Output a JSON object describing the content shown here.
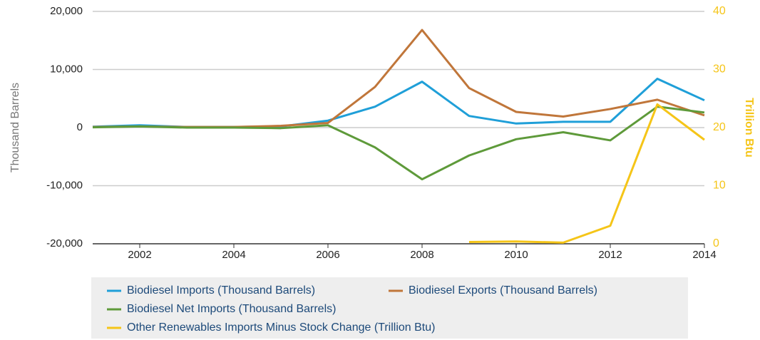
{
  "chart_data": {
    "type": "line",
    "y_label": "Thousand Barrels",
    "y2_label": "Trillion Btu",
    "x": [
      2001,
      2002,
      2003,
      2004,
      2005,
      2006,
      2007,
      2008,
      2009,
      2010,
      2011,
      2012,
      2013,
      2014
    ],
    "xlim": [
      2001,
      2014
    ],
    "xticks": [
      2002,
      2004,
      2006,
      2008,
      2010,
      2012,
      2014
    ],
    "ylim": [
      -20000,
      20000
    ],
    "yticks": [
      {
        "value": -20000,
        "label": "-20,000"
      },
      {
        "value": -10000,
        "label": "-10,000"
      },
      0,
      {
        "value": 10000,
        "label": "10,000"
      },
      {
        "value": 20000,
        "label": "20,000"
      }
    ],
    "y2lim": [
      0,
      40
    ],
    "y2ticks": [
      0,
      10,
      20,
      30,
      40
    ],
    "grid": true,
    "legend": "bottom",
    "series": [
      {
        "name": "Biodiesel Imports (Thousand Barrels)",
        "color": "#1f9fd8",
        "values": [
          150,
          400,
          100,
          100,
          200,
          1200,
          3600,
          7900,
          2000,
          700,
          1000,
          1000,
          8400,
          4700
        ]
      },
      {
        "name": "Biodiesel Exports (Thousand Barrels)",
        "color": "#c0763a",
        "values": [
          100,
          200,
          100,
          100,
          300,
          800,
          7000,
          16800,
          6800,
          2700,
          1900,
          3200,
          4800,
          2100
        ]
      },
      {
        "name": "Biodiesel Net Imports (Thousand Barrels)",
        "color": "#5e9a3a",
        "values": [
          50,
          200,
          0,
          0,
          -100,
          400,
          -3400,
          -8900,
          -4800,
          -2000,
          -800,
          -2200,
          3600,
          2600
        ]
      },
      {
        "name": "Other Renewables Imports Minus Stock Change (Trillion Btu)",
        "color": "#f5c518",
        "axis": "y2",
        "values": [
          null,
          null,
          null,
          null,
          null,
          null,
          null,
          null,
          0.3,
          0.4,
          0.2,
          3.1,
          24,
          17.9
        ]
      }
    ]
  }
}
